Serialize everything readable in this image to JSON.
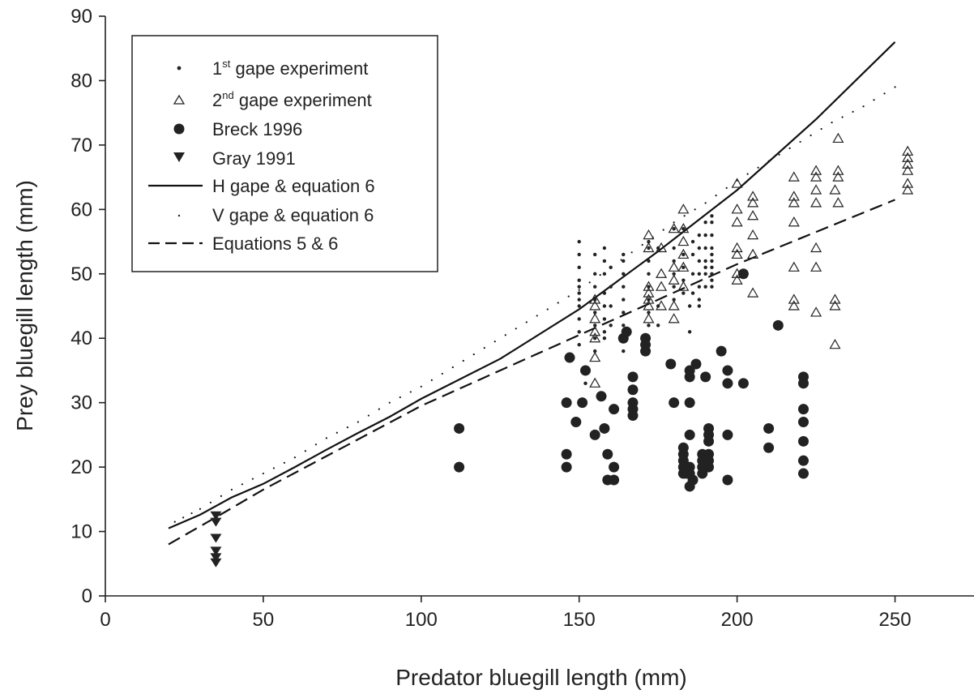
{
  "chart_data": {
    "type": "scatter",
    "xlabel": "Predator bluegill length (mm)",
    "ylabel": "Prey bluegill length (mm)",
    "xlim": [
      0,
      275
    ],
    "ylim": [
      0,
      90
    ],
    "x_ticks": [
      "0",
      "50",
      "100",
      "150",
      "200",
      "250"
    ],
    "y_ticks": [
      "0",
      "10",
      "20",
      "30",
      "40",
      "50",
      "60",
      "70",
      "80",
      "90"
    ],
    "grid": false,
    "legend_position": "top-left",
    "series": [
      {
        "name": "1st gape experiment",
        "label_main_1": "1",
        "label_sup": "st",
        "label_rest": " gape experiment",
        "marker": "small-dot",
        "color": "#222222",
        "points": [
          [
            150,
            55
          ],
          [
            150,
            53
          ],
          [
            150,
            51
          ],
          [
            150,
            49
          ],
          [
            150,
            48
          ],
          [
            150,
            47
          ],
          [
            150,
            46
          ],
          [
            150,
            45
          ],
          [
            150,
            43
          ],
          [
            150,
            41
          ],
          [
            150,
            39
          ],
          [
            152,
            33
          ],
          [
            155,
            53
          ],
          [
            155,
            50
          ],
          [
            155,
            48
          ],
          [
            155,
            46
          ],
          [
            155,
            44
          ],
          [
            155,
            42
          ],
          [
            155,
            40
          ],
          [
            155,
            38
          ],
          [
            158,
            54
          ],
          [
            158,
            52
          ],
          [
            158,
            50
          ],
          [
            158,
            47
          ],
          [
            158,
            45
          ],
          [
            158,
            43
          ],
          [
            158,
            41
          ],
          [
            158,
            40
          ],
          [
            160,
            51
          ],
          [
            160,
            48
          ],
          [
            160,
            45
          ],
          [
            160,
            42
          ],
          [
            164,
            53
          ],
          [
            164,
            52
          ],
          [
            164,
            50
          ],
          [
            164,
            48
          ],
          [
            164,
            46
          ],
          [
            164,
            44
          ],
          [
            164,
            42
          ],
          [
            164,
            40
          ],
          [
            164,
            38
          ],
          [
            172,
            55
          ],
          [
            172,
            54
          ],
          [
            172,
            52
          ],
          [
            172,
            50
          ],
          [
            172,
            48
          ],
          [
            172,
            46
          ],
          [
            172,
            44
          ],
          [
            172,
            42
          ],
          [
            175,
            54
          ],
          [
            175,
            45
          ],
          [
            175,
            42
          ],
          [
            180,
            57
          ],
          [
            180,
            54
          ],
          [
            180,
            52
          ],
          [
            180,
            50
          ],
          [
            180,
            48
          ],
          [
            180,
            46
          ],
          [
            183,
            57
          ],
          [
            183,
            53
          ],
          [
            183,
            51
          ],
          [
            183,
            49
          ],
          [
            183,
            47
          ],
          [
            186,
            55
          ],
          [
            186,
            53
          ],
          [
            186,
            50
          ],
          [
            186,
            47
          ],
          [
            185,
            45
          ],
          [
            185,
            41
          ],
          [
            188,
            56
          ],
          [
            188,
            54
          ],
          [
            188,
            52
          ],
          [
            188,
            50
          ],
          [
            188,
            48
          ],
          [
            188,
            46
          ],
          [
            188,
            45
          ],
          [
            190,
            58
          ],
          [
            190,
            56
          ],
          [
            190,
            54
          ],
          [
            190,
            52
          ],
          [
            190,
            51
          ],
          [
            190,
            50
          ],
          [
            190,
            48
          ],
          [
            192,
            59
          ],
          [
            192,
            58
          ],
          [
            192,
            56
          ],
          [
            192,
            54
          ],
          [
            192,
            53
          ],
          [
            192,
            52
          ],
          [
            192,
            51
          ],
          [
            192,
            50
          ],
          [
            192,
            49
          ],
          [
            192,
            48
          ]
        ]
      },
      {
        "name": "2nd gape experiment",
        "label_main_1": "2",
        "label_sup": "nd",
        "label_rest": " gape experiment",
        "marker": "open-triangle",
        "color": "#222222",
        "points": [
          [
            155,
            46
          ],
          [
            155,
            45
          ],
          [
            155,
            43
          ],
          [
            155,
            41
          ],
          [
            155,
            40
          ],
          [
            155,
            37
          ],
          [
            155,
            33
          ],
          [
            172,
            56
          ],
          [
            172,
            54
          ],
          [
            172,
            48
          ],
          [
            172,
            47
          ],
          [
            172,
            46
          ],
          [
            172,
            45
          ],
          [
            172,
            43
          ],
          [
            176,
            54
          ],
          [
            176,
            50
          ],
          [
            176,
            48
          ],
          [
            176,
            45
          ],
          [
            180,
            57
          ],
          [
            180,
            51
          ],
          [
            180,
            49
          ],
          [
            180,
            45
          ],
          [
            180,
            43
          ],
          [
            183,
            60
          ],
          [
            183,
            57
          ],
          [
            183,
            55
          ],
          [
            183,
            53
          ],
          [
            183,
            51
          ],
          [
            183,
            48
          ],
          [
            200,
            64
          ],
          [
            200,
            60
          ],
          [
            200,
            58
          ],
          [
            200,
            54
          ],
          [
            200,
            53
          ],
          [
            200,
            50
          ],
          [
            200,
            49
          ],
          [
            205,
            62
          ],
          [
            205,
            61
          ],
          [
            205,
            59
          ],
          [
            205,
            56
          ],
          [
            205,
            53
          ],
          [
            205,
            47
          ],
          [
            218,
            65
          ],
          [
            218,
            62
          ],
          [
            218,
            61
          ],
          [
            218,
            58
          ],
          [
            218,
            51
          ],
          [
            218,
            46
          ],
          [
            218,
            45
          ],
          [
            225,
            66
          ],
          [
            225,
            65
          ],
          [
            225,
            63
          ],
          [
            225,
            61
          ],
          [
            225,
            54
          ],
          [
            225,
            51
          ],
          [
            225,
            44
          ],
          [
            231,
            63
          ],
          [
            231,
            46
          ],
          [
            231,
            45
          ],
          [
            231,
            39
          ],
          [
            232,
            71
          ],
          [
            232,
            66
          ],
          [
            232,
            65
          ],
          [
            232,
            61
          ],
          [
            254,
            69
          ],
          [
            254,
            68
          ],
          [
            254,
            67
          ],
          [
            254,
            66
          ],
          [
            254,
            64
          ],
          [
            254,
            63
          ]
        ]
      },
      {
        "name": "Breck 1996",
        "marker": "filled-circle",
        "color": "#222222",
        "points": [
          [
            112,
            26
          ],
          [
            112,
            20
          ],
          [
            146,
            30
          ],
          [
            146,
            22
          ],
          [
            146,
            20
          ],
          [
            147,
            37
          ],
          [
            149,
            27
          ],
          [
            151,
            30
          ],
          [
            152,
            35
          ],
          [
            155,
            25
          ],
          [
            157,
            31
          ],
          [
            158,
            26
          ],
          [
            159,
            22
          ],
          [
            159,
            18
          ],
          [
            161,
            20
          ],
          [
            161,
            18
          ],
          [
            161,
            29
          ],
          [
            164,
            40
          ],
          [
            165,
            41
          ],
          [
            167,
            34
          ],
          [
            167,
            32
          ],
          [
            167,
            30
          ],
          [
            167,
            29
          ],
          [
            167,
            28
          ],
          [
            171,
            40
          ],
          [
            171,
            39
          ],
          [
            171,
            38
          ],
          [
            179,
            36
          ],
          [
            180,
            30
          ],
          [
            183,
            23
          ],
          [
            183,
            22
          ],
          [
            183,
            21
          ],
          [
            183,
            20
          ],
          [
            183,
            19
          ],
          [
            184,
            20
          ],
          [
            184,
            19
          ],
          [
            185,
            35
          ],
          [
            185,
            34
          ],
          [
            185,
            30
          ],
          [
            185,
            25
          ],
          [
            185,
            20
          ],
          [
            185,
            19
          ],
          [
            185,
            17
          ],
          [
            186,
            18
          ],
          [
            187,
            36
          ],
          [
            189,
            22
          ],
          [
            189,
            21
          ],
          [
            189,
            20
          ],
          [
            189,
            19
          ],
          [
            190,
            34
          ],
          [
            191,
            26
          ],
          [
            191,
            25
          ],
          [
            191,
            24
          ],
          [
            191,
            22
          ],
          [
            191,
            21
          ],
          [
            191,
            20
          ],
          [
            195,
            38
          ],
          [
            197,
            35
          ],
          [
            197,
            33
          ],
          [
            197,
            25
          ],
          [
            197,
            18
          ],
          [
            202,
            33
          ],
          [
            202,
            50
          ],
          [
            210,
            26
          ],
          [
            210,
            23
          ],
          [
            213,
            42
          ],
          [
            221,
            34
          ],
          [
            221,
            33
          ],
          [
            221,
            29
          ],
          [
            221,
            27
          ],
          [
            221,
            24
          ],
          [
            221,
            21
          ],
          [
            221,
            19
          ]
        ]
      },
      {
        "name": "Gray 1991",
        "marker": "filled-triangle-down",
        "color": "#222222",
        "points": [
          [
            35,
            12.5
          ],
          [
            35,
            11.5
          ],
          [
            35,
            9
          ],
          [
            35,
            7
          ],
          [
            35,
            6
          ],
          [
            35,
            5.2
          ]
        ]
      },
      {
        "name": "H gape & equation 6",
        "line_style": "solid",
        "color": "#111111",
        "points": [
          [
            20,
            10.5
          ],
          [
            30,
            12.6
          ],
          [
            40,
            15.3
          ],
          [
            50,
            17.4
          ],
          [
            60,
            20.0
          ],
          [
            70,
            22.7
          ],
          [
            80,
            25.3
          ],
          [
            90,
            27.8
          ],
          [
            100,
            30.6
          ],
          [
            125,
            36.8
          ],
          [
            150,
            44.5
          ],
          [
            175,
            53.5
          ],
          [
            200,
            63.0
          ],
          [
            225,
            74.0
          ],
          [
            250,
            86.0
          ]
        ]
      },
      {
        "name": "V gape & equation 6",
        "line_style": "dotted",
        "color": "#111111",
        "points": [
          [
            22,
            11.5
          ],
          [
            30,
            13.5
          ],
          [
            40,
            16.5
          ],
          [
            50,
            19.0
          ],
          [
            60,
            21.5
          ],
          [
            70,
            24.5
          ],
          [
            80,
            27.0
          ],
          [
            90,
            30.0
          ],
          [
            100,
            32.5
          ],
          [
            110,
            35.5
          ],
          [
            120,
            38.5
          ],
          [
            130,
            41.5
          ],
          [
            140,
            44.5
          ],
          [
            150,
            47.5
          ],
          [
            160,
            51.0
          ],
          [
            170,
            54.5
          ],
          [
            180,
            58.0
          ],
          [
            190,
            61.0
          ],
          [
            200,
            64.5
          ],
          [
            210,
            67.5
          ],
          [
            220,
            70.5
          ],
          [
            230,
            73.5
          ],
          [
            240,
            76.0
          ],
          [
            250,
            79.0
          ]
        ]
      },
      {
        "name": "Equations 5 & 6",
        "line_style": "dashed",
        "color": "#111111",
        "points": [
          [
            20,
            8.0
          ],
          [
            35,
            12.2
          ],
          [
            50,
            16.5
          ],
          [
            75,
            23.0
          ],
          [
            100,
            29.5
          ],
          [
            125,
            35.0
          ],
          [
            150,
            40.5
          ],
          [
            175,
            46.0
          ],
          [
            200,
            51.5
          ],
          [
            225,
            56.5
          ],
          [
            250,
            61.5
          ]
        ]
      }
    ]
  }
}
